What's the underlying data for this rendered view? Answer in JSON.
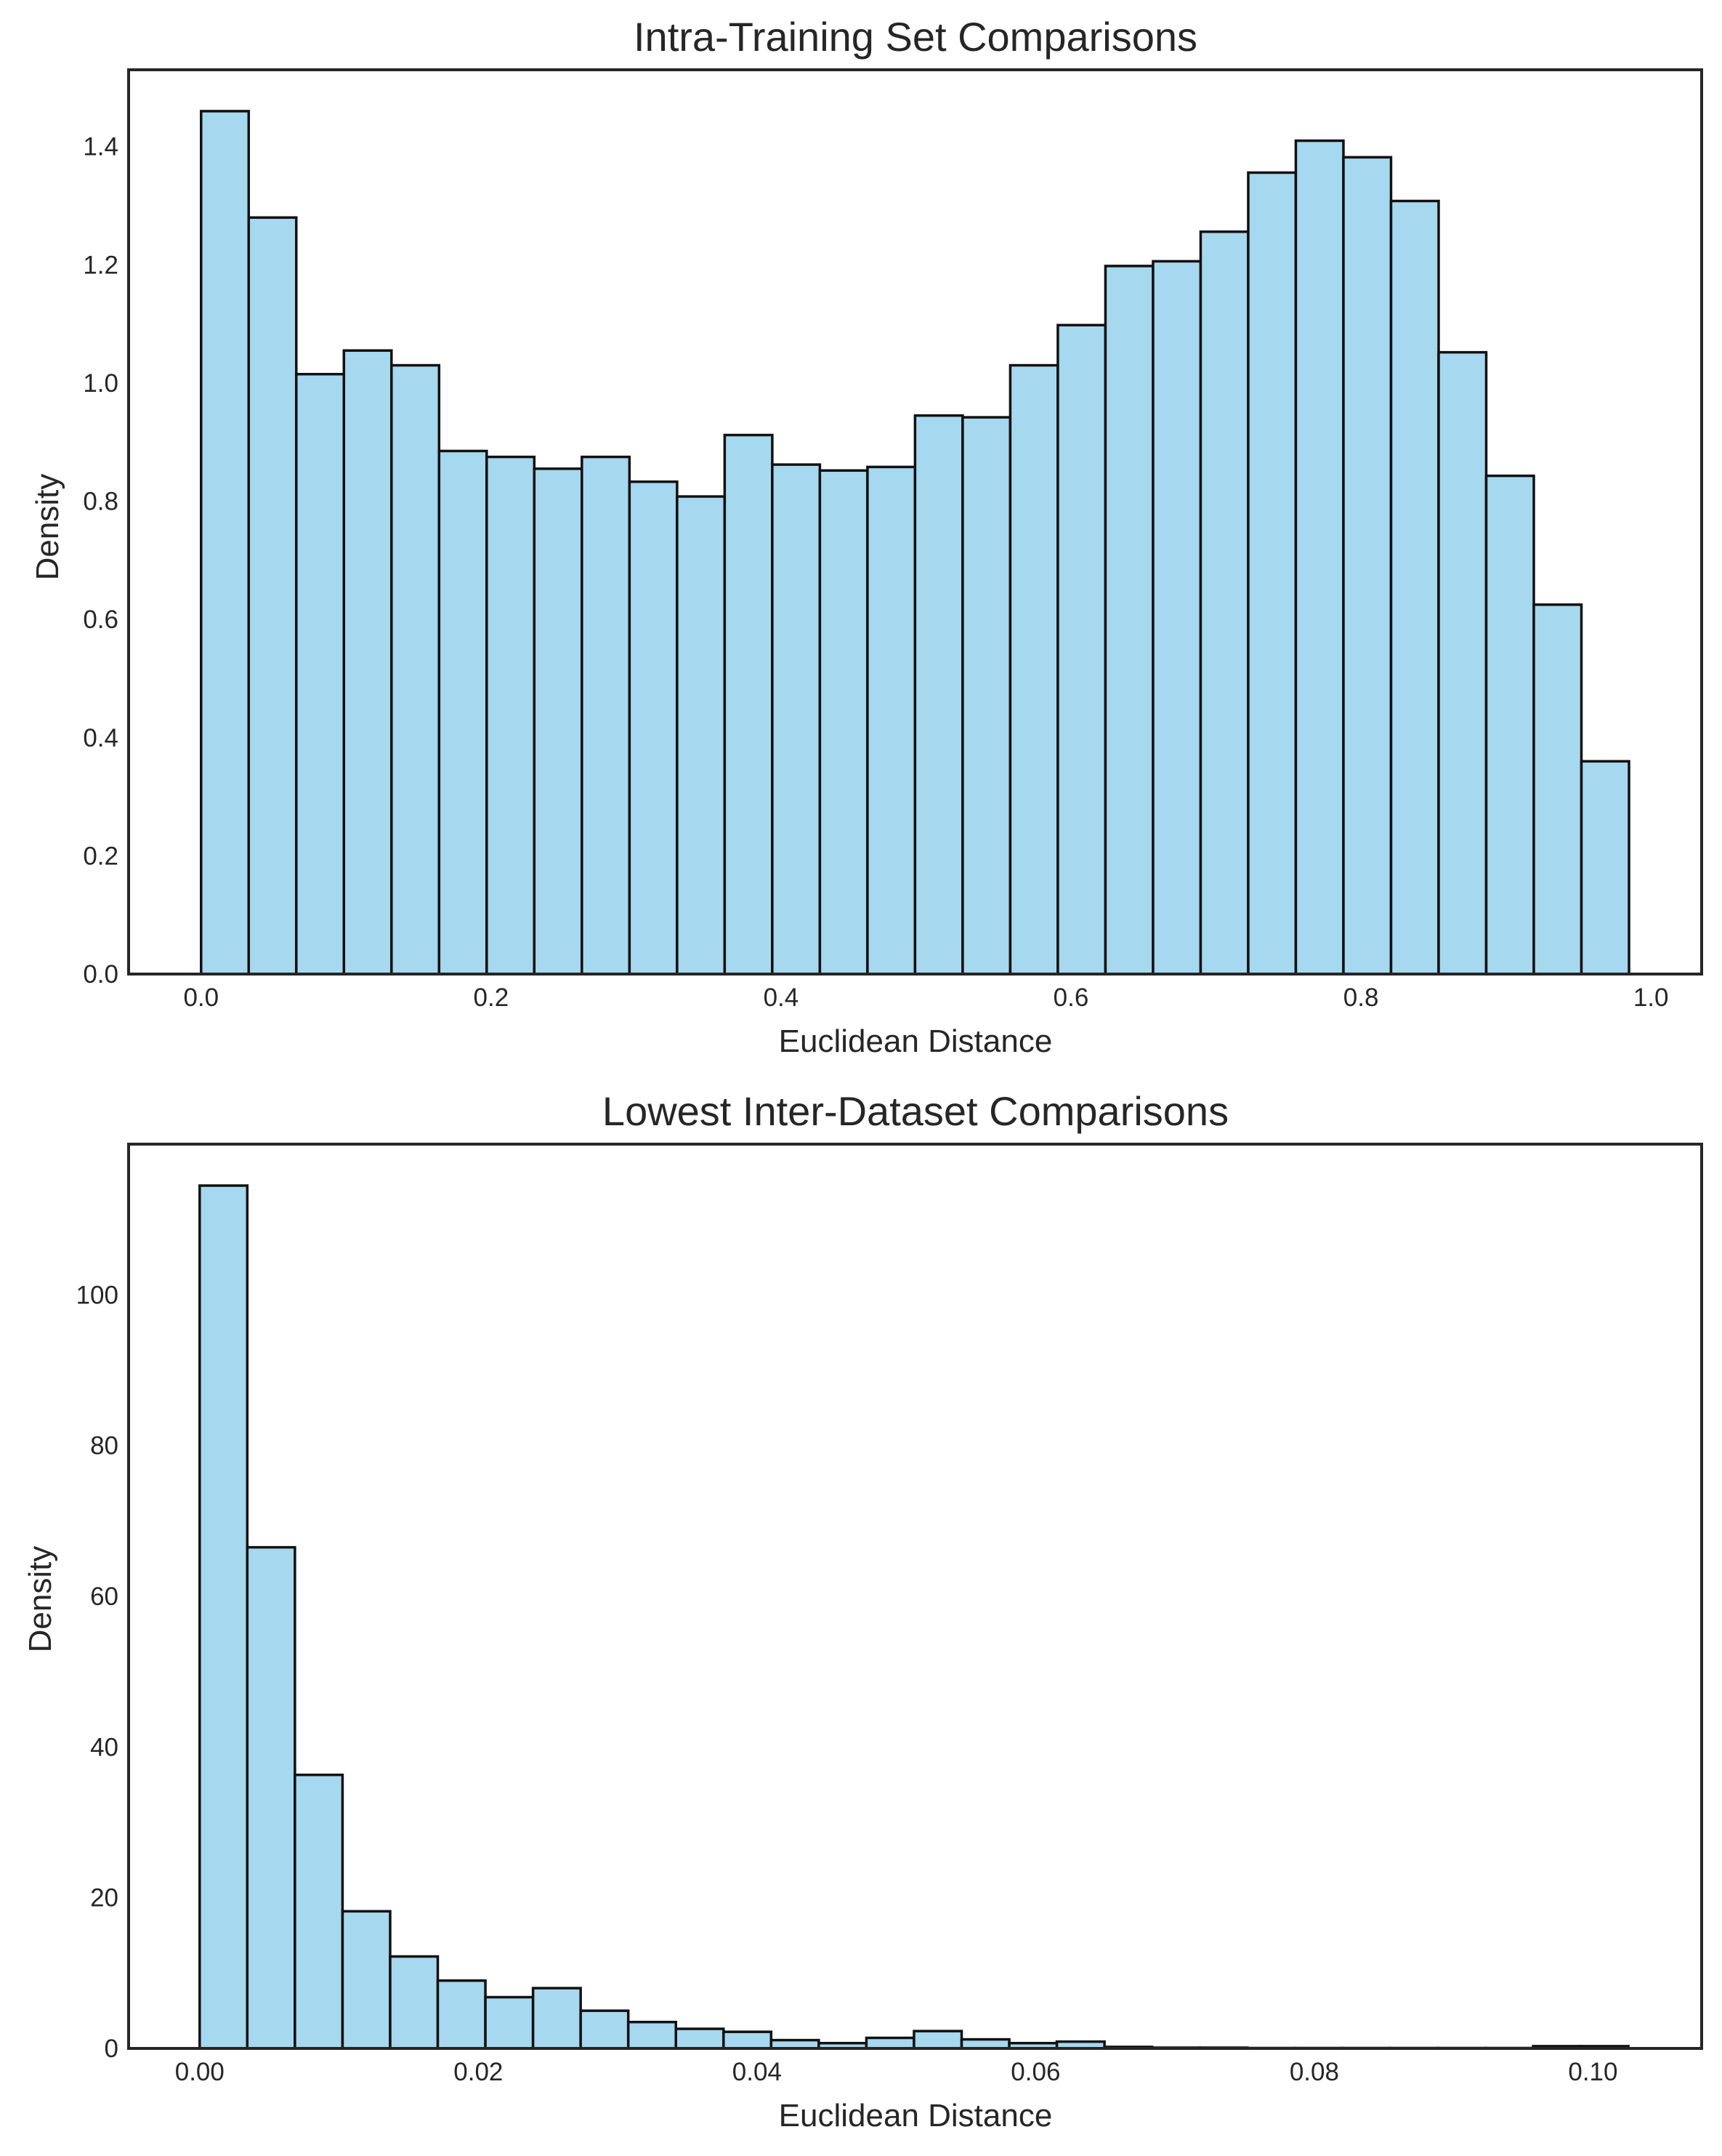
{
  "chart_data": [
    {
      "type": "bar",
      "title": "Intra-Training Set Comparisons",
      "xlabel": "Euclidean Distance",
      "ylabel": "Density",
      "xlim": [
        -0.05,
        1.035
      ],
      "ylim": [
        0,
        1.53
      ],
      "xticks": [
        0.0,
        0.2,
        0.4,
        0.6,
        0.8,
        1.0
      ],
      "xtick_labels": [
        "0.0",
        "0.2",
        "0.4",
        "0.6",
        "0.8",
        "1.0"
      ],
      "yticks": [
        0.0,
        0.2,
        0.4,
        0.6,
        0.8,
        1.0,
        1.2,
        1.4
      ],
      "ytick_labels": [
        "0.0",
        "0.2",
        "0.4",
        "0.6",
        "0.8",
        "1.0",
        "1.2",
        "1.4"
      ],
      "bin_start": 0.0,
      "bin_width": 0.03283,
      "values": [
        1.46,
        1.28,
        1.015,
        1.055,
        1.03,
        0.885,
        0.875,
        0.855,
        0.875,
        0.833,
        0.808,
        0.912,
        0.862,
        0.852,
        0.858,
        0.945,
        0.942,
        1.03,
        1.098,
        1.198,
        1.206,
        1.256,
        1.356,
        1.41,
        1.382,
        1.308,
        1.052,
        0.843,
        0.625,
        0.36
      ],
      "bar_color": "#a6d8ef",
      "edge_color": "#111111",
      "grid": false
    },
    {
      "type": "bar",
      "title": "Lowest Inter-Dataset Comparisons",
      "xlabel": "Euclidean Distance",
      "ylabel": "Density",
      "xlim": [
        -0.0051,
        0.1078
      ],
      "ylim": [
        0,
        120
      ],
      "xticks": [
        0.0,
        0.02,
        0.04,
        0.06,
        0.08,
        0.1
      ],
      "xtick_labels": [
        "0.00",
        "0.02",
        "0.04",
        "0.06",
        "0.08",
        "0.10"
      ],
      "yticks": [
        0,
        20,
        40,
        60,
        80,
        100
      ],
      "ytick_labels": [
        "0",
        "20",
        "40",
        "60",
        "80",
        "100"
      ],
      "bin_start": 0.0,
      "bin_width": 0.003418,
      "values": [
        114.5,
        66.5,
        36.3,
        18.2,
        12.2,
        9.0,
        6.8,
        8.0,
        5.0,
        3.5,
        2.6,
        2.2,
        1.1,
        0.7,
        1.4,
        2.3,
        1.2,
        0.7,
        0.9,
        0.2,
        0.1,
        0.1,
        0.05,
        0.05,
        0.05,
        0.05,
        0.05,
        0.05,
        0.3,
        0.3
      ],
      "bar_color": "#a6d8ef",
      "edge_color": "#111111",
      "grid": false
    }
  ]
}
